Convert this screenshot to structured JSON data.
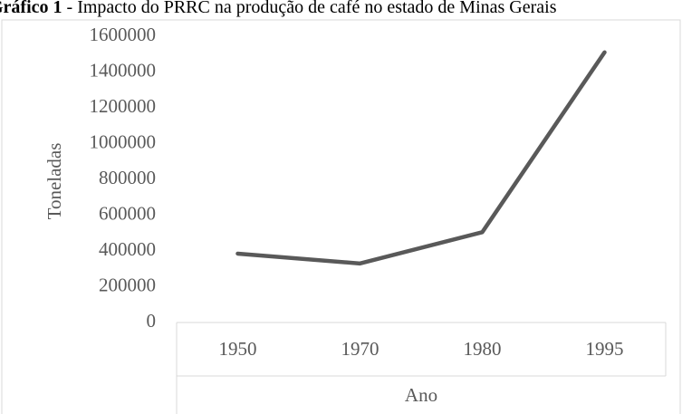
{
  "chart_data": {
    "type": "line",
    "title_label": "Gráfico 1",
    "title": "- Impacto do PRRC na produção de café no estado de Minas Gerais",
    "x_label": "Ano",
    "y_label": "Toneladas",
    "categories": [
      "1950",
      "1970",
      "1980",
      "1995"
    ],
    "series": [
      {
        "name": "Toneladas",
        "color": "#595959",
        "values": [
          385000,
          330000,
          505000,
          1510000
        ]
      }
    ],
    "ylim": [
      0,
      1600000
    ],
    "yticks": [
      0,
      200000,
      400000,
      600000,
      800000,
      1000000,
      1200000,
      1400000,
      1600000
    ],
    "grid": false
  }
}
